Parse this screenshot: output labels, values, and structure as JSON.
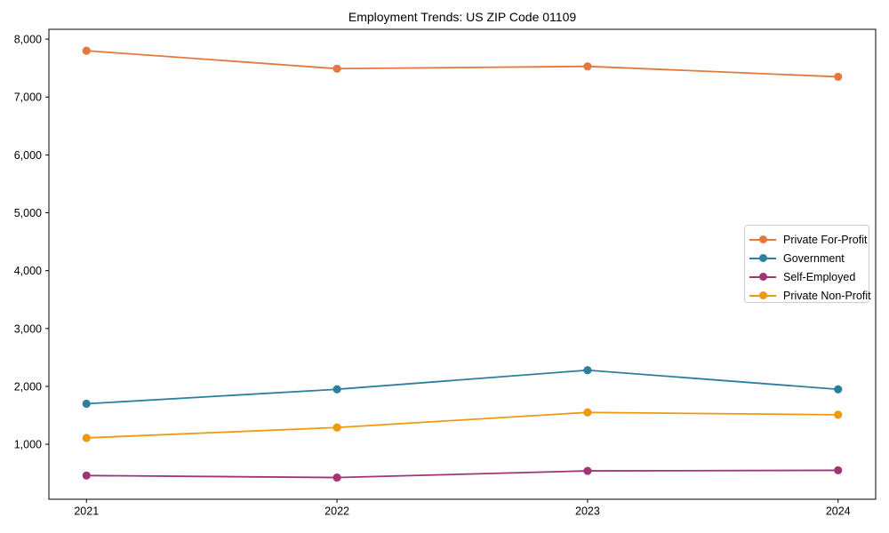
{
  "chart_data": {
    "type": "line",
    "title": "Employment Trends: US ZIP Code 01109",
    "x": [
      2021,
      2022,
      2023,
      2024
    ],
    "x_tick_labels": [
      "2021",
      "2022",
      "2023",
      "2024"
    ],
    "series": [
      {
        "name": "Private For-Profit",
        "color": "#e2793e",
        "values": [
          7800,
          7490,
          7530,
          7350
        ]
      },
      {
        "name": "Government",
        "color": "#2e7e9d",
        "values": [
          1700,
          1950,
          2280,
          1950
        ]
      },
      {
        "name": "Self-Employed",
        "color": "#a23476",
        "values": [
          460,
          425,
          540,
          550
        ]
      },
      {
        "name": "Private Non-Profit",
        "color": "#ef990f",
        "values": [
          1110,
          1290,
          1550,
          1510
        ]
      }
    ],
    "xlabel": "",
    "ylabel": "",
    "xlim": [
      2020.85,
      2024.15
    ],
    "ylim": [
      50,
      8170
    ],
    "yticks": [
      1000,
      2000,
      3000,
      4000,
      5000,
      6000,
      7000,
      8000
    ],
    "grid": false,
    "legend": {
      "position": "center right",
      "entries": [
        "Private For-Profit",
        "Government",
        "Self-Employed",
        "Private Non-Profit"
      ]
    }
  }
}
